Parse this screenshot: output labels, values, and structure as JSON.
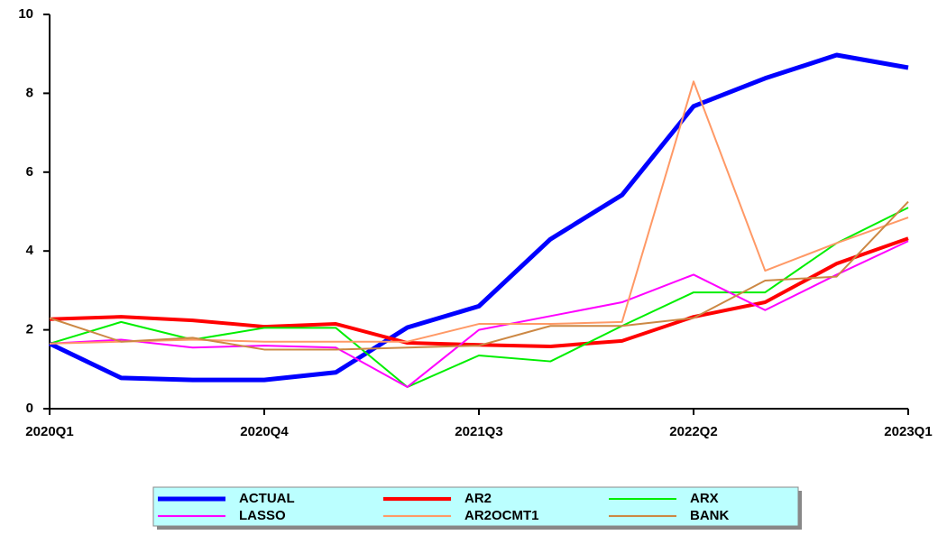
{
  "chart_data": {
    "type": "line",
    "categories": [
      "2020Q1",
      null,
      null,
      "2020Q4",
      null,
      null,
      "2021Q3",
      null,
      null,
      "2022Q2",
      null,
      null,
      "2023Q1"
    ],
    "series": [
      {
        "name": "ACTUAL",
        "color": "#0000ff",
        "values": [
          1.65,
          0.78,
          0.73,
          0.73,
          0.92,
          2.06,
          2.6,
          4.3,
          5.42,
          7.67,
          8.38,
          8.97,
          8.65
        ]
      },
      {
        "name": "AR2",
        "color": "#ff0000",
        "values": [
          2.27,
          2.33,
          2.24,
          2.08,
          2.15,
          1.67,
          1.62,
          1.58,
          1.72,
          2.33,
          2.7,
          3.68,
          4.32
        ]
      },
      {
        "name": "ARX",
        "color": "#00ee00",
        "values": [
          1.65,
          2.2,
          1.75,
          2.05,
          2.05,
          0.55,
          1.35,
          1.2,
          2.1,
          2.95,
          2.95,
          4.2,
          5.1
        ]
      },
      {
        "name": "LASSO",
        "color": "#ff00ff",
        "values": [
          1.65,
          1.75,
          1.55,
          1.6,
          1.55,
          0.55,
          2.0,
          2.35,
          2.7,
          3.4,
          2.5,
          3.4,
          4.25
        ]
      },
      {
        "name": "AR2OCMT1",
        "color": "#ff9966",
        "values": [
          1.65,
          1.7,
          1.75,
          1.7,
          1.7,
          1.7,
          2.15,
          2.15,
          2.2,
          8.3,
          3.5,
          4.2,
          4.85
        ]
      },
      {
        "name": "BANK",
        "color": "#cc8844",
        "values": [
          2.3,
          1.7,
          1.8,
          1.5,
          1.5,
          1.55,
          1.6,
          2.1,
          2.1,
          2.3,
          3.25,
          3.35,
          5.25
        ]
      }
    ],
    "ylim": [
      0,
      10
    ],
    "yticks": [
      0,
      2,
      4,
      6,
      8,
      10
    ],
    "legend": "bottom"
  }
}
